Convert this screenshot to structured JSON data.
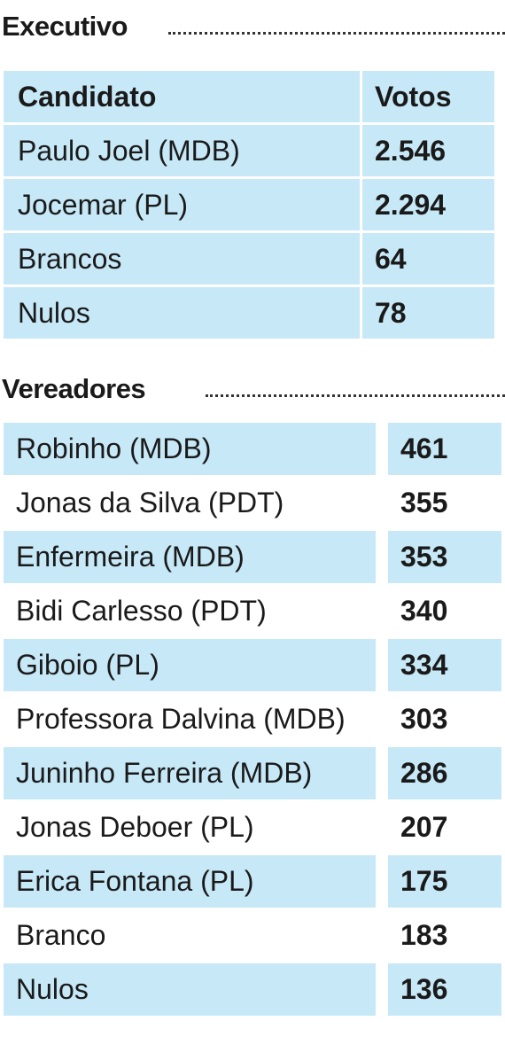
{
  "executivo": {
    "title": "Executivo",
    "header": {
      "candidate": "Candidato",
      "votes": "Votos"
    },
    "rows": [
      {
        "name": "Paulo Joel (MDB)",
        "votes": "2.546"
      },
      {
        "name": "Jocemar (PL)",
        "votes": "2.294"
      },
      {
        "name": "Brancos",
        "votes": "64"
      },
      {
        "name": "Nulos",
        "votes": "78"
      }
    ]
  },
  "vereadores": {
    "title": "Vereadores",
    "rows": [
      {
        "name": "Robinho (MDB)",
        "votes": "461"
      },
      {
        "name": "Jonas da Silva (PDT)",
        "votes": "355"
      },
      {
        "name": "Enfermeira (MDB)",
        "votes": "353"
      },
      {
        "name": "Bidi Carlesso (PDT)",
        "votes": "340"
      },
      {
        "name": "Giboio (PL)",
        "votes": "334"
      },
      {
        "name": "Professora Dalvina (MDB)",
        "votes": "303"
      },
      {
        "name": "Juninho Ferreira (MDB)",
        "votes": "286"
      },
      {
        "name": "Jonas Deboer (PL)",
        "votes": "207"
      },
      {
        "name": "Erica Fontana (PL)",
        "votes": "175"
      },
      {
        "name": "Branco",
        "votes": "183"
      },
      {
        "name": "Nulos",
        "votes": "136"
      }
    ]
  },
  "colors": {
    "row_fill": "#c7e8f7",
    "text": "#1a1a1a"
  }
}
